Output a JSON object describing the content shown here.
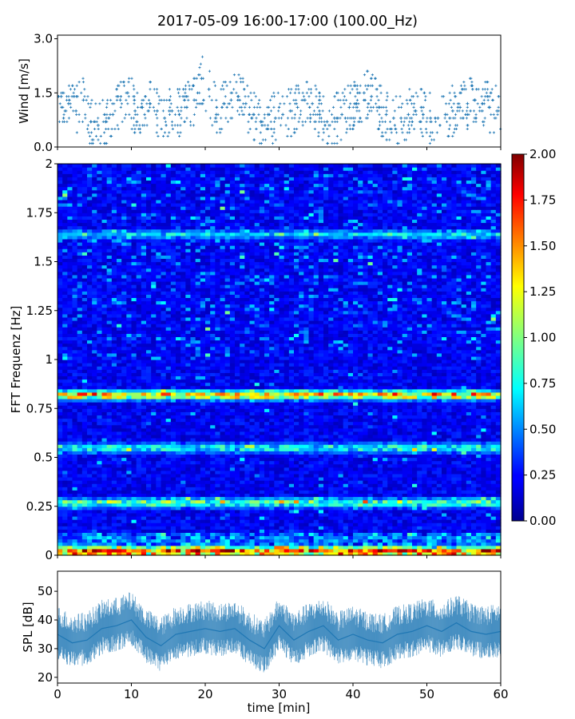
{
  "title": "2017-05-09 16:00-17:00 (100.00_Hz)",
  "chart_data": [
    {
      "type": "scatter",
      "name": "wind",
      "ylabel": "Wind [m/s]",
      "ylim": [
        0,
        3.1
      ],
      "yticks": [
        "0.0",
        "1.5",
        "3.0"
      ],
      "ytick_values": [
        0,
        1.5,
        3.0
      ],
      "xlim": [
        0,
        60
      ],
      "color": "#1f77b4",
      "marker": "+",
      "x": [
        0.5,
        1.5,
        2.5,
        3.5,
        4.5,
        5.5,
        6.5,
        7.5,
        8.5,
        9.5,
        10.5,
        11.5,
        12.5,
        13.5,
        14.5,
        15.5,
        16.5,
        17.5,
        18.5,
        19.5,
        20.5,
        21.5,
        22.5,
        23.5,
        24.5,
        25.5,
        26.5,
        27.5,
        28.5,
        29.5,
        30.5,
        31.5,
        32.5,
        33.5,
        34.5,
        35.5,
        36.5,
        37.5,
        38.5,
        39.5,
        40.5,
        41.5,
        42.5,
        43.5,
        44.5,
        45.5,
        46.5,
        47.5,
        48.5,
        49.5,
        50.5,
        51.5,
        52.5,
        53.5,
        54.5,
        55.5,
        56.5,
        57.5,
        58.5,
        59.5
      ],
      "y": [
        1.4,
        1.2,
        1.0,
        1.3,
        0.7,
        0.6,
        0.7,
        0.9,
        1.3,
        1.5,
        1.0,
        1.1,
        1.2,
        1.0,
        0.8,
        1.0,
        0.9,
        1.1,
        1.3,
        1.9,
        1.6,
        0.9,
        1.2,
        1.3,
        1.4,
        1.2,
        0.9,
        0.7,
        0.9,
        0.8,
        0.9,
        1.0,
        1.1,
        1.3,
        1.2,
        0.9,
        0.7,
        0.8,
        0.9,
        1.1,
        1.2,
        1.5,
        1.4,
        1.1,
        0.9,
        0.8,
        0.8,
        0.9,
        1.0,
        0.9,
        0.8,
        0.8,
        0.9,
        1.0,
        1.1,
        1.2,
        1.3,
        1.2,
        1.1,
        1.0
      ]
    },
    {
      "type": "heatmap",
      "name": "spectrogram",
      "ylabel": "FFT Frequenz [Hz]",
      "ylim": [
        0,
        2
      ],
      "yticks": [
        "0",
        "0.25",
        "0.5",
        "0.75",
        "1",
        "1.25",
        "1.5",
        "1.75",
        "2"
      ],
      "ytick_values": [
        0,
        0.25,
        0.5,
        0.75,
        1,
        1.25,
        1.5,
        1.75,
        2
      ],
      "xlim": [
        0,
        60
      ],
      "colormap": "jet",
      "colorbar": {
        "range": [
          0,
          2
        ],
        "ticks": [
          "0.00",
          "0.25",
          "0.50",
          "0.75",
          "1.00",
          "1.25",
          "1.50",
          "1.75",
          "2.00"
        ],
        "tick_values": [
          0,
          0.25,
          0.5,
          0.75,
          1.0,
          1.25,
          1.5,
          1.75,
          2.0
        ]
      },
      "bands": [
        {
          "freq": 0.82,
          "amplitude": 1.6
        },
        {
          "freq": 0.55,
          "amplitude": 0.8
        },
        {
          "freq": 0.27,
          "amplitude": 1.0
        },
        {
          "freq": 0.02,
          "amplitude": 1.6
        },
        {
          "freq": 1.64,
          "amplitude": 0.6
        }
      ]
    },
    {
      "type": "line",
      "name": "spl",
      "ylabel": "SPL [dB]",
      "xlabel": "time [min]",
      "ylim": [
        18,
        57
      ],
      "yticks": [
        "20",
        "30",
        "40",
        "50"
      ],
      "ytick_values": [
        20,
        30,
        40,
        50
      ],
      "xlim": [
        0,
        60
      ],
      "xticks": [
        "0",
        "10",
        "20",
        "30",
        "40",
        "50",
        "60"
      ],
      "xtick_values": [
        0,
        10,
        20,
        30,
        40,
        50,
        60
      ],
      "color": "#1f77b4",
      "x": [
        0,
        2,
        4,
        6,
        8,
        10,
        12,
        14,
        16,
        18,
        20,
        22,
        24,
        26,
        28,
        30,
        32,
        34,
        36,
        38,
        40,
        42,
        44,
        46,
        48,
        50,
        52,
        54,
        56,
        58,
        60
      ],
      "y": [
        35,
        32,
        33,
        37,
        38,
        40,
        34,
        31,
        35,
        36,
        37,
        36,
        37,
        33,
        30,
        38,
        33,
        36,
        38,
        33,
        35,
        33,
        32,
        35,
        36,
        38,
        36,
        39,
        36,
        35,
        36
      ]
    }
  ]
}
